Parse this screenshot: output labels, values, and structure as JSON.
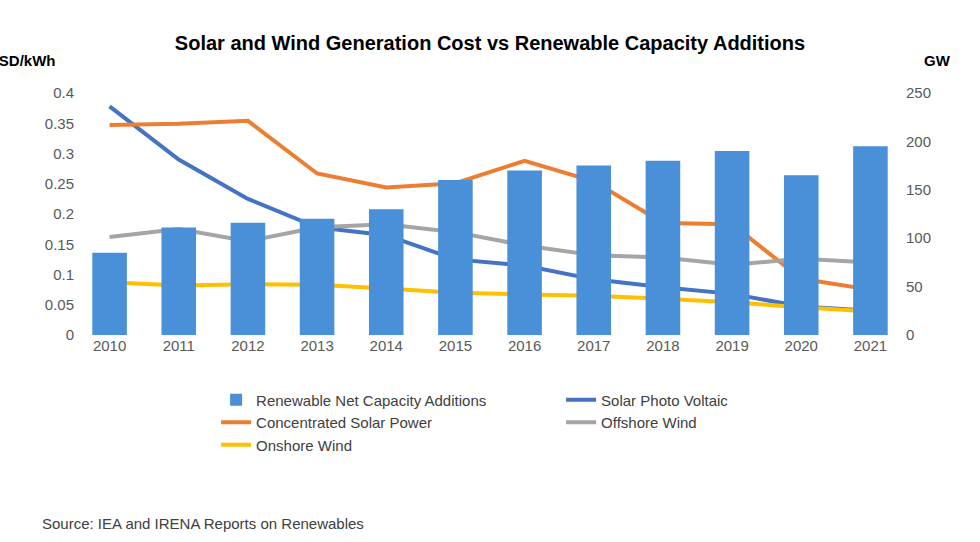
{
  "chart_data": {
    "type": "bar",
    "title": "Solar and Wind Generation Cost vs Renewable Capacity Additions",
    "ylabel": "USD/kWh",
    "y2label": "GW",
    "source": "Source: IEA and IRENA Reports on Renewables",
    "categories": [
      "2010",
      "2011",
      "2012",
      "2013",
      "2014",
      "2015",
      "2016",
      "2017",
      "2018",
      "2019",
      "2020",
      "2021"
    ],
    "series": [
      {
        "name": "Renewable Net Capacity Additions",
        "type": "bar",
        "axis": "y2",
        "color": "#4a90d9",
        "values": [
          85,
          111,
          116,
          120,
          130,
          160,
          170,
          175,
          180,
          190,
          165,
          195
        ]
      },
      {
        "name": "Solar Photo Voltaic",
        "type": "line",
        "color": "#4472c4",
        "values": [
          0.378,
          0.29,
          0.225,
          0.178,
          0.165,
          0.125,
          0.115,
          0.092,
          0.079,
          0.068,
          0.047,
          0.04
        ]
      },
      {
        "name": "Concentrated Solar Power",
        "type": "line",
        "color": "#ed7d31",
        "values": [
          0.347,
          0.349,
          0.354,
          0.267,
          0.244,
          0.251,
          0.288,
          0.254,
          0.185,
          0.183,
          0.093,
          0.075
        ]
      },
      {
        "name": "Offshore Wind",
        "type": "line",
        "color": "#a5a5a5",
        "values": [
          0.162,
          0.175,
          0.155,
          0.178,
          0.183,
          0.17,
          0.148,
          0.132,
          0.128,
          0.116,
          0.126,
          0.12
        ]
      },
      {
        "name": "Onshore Wind",
        "type": "line",
        "color": "#ffc000",
        "values": [
          0.087,
          0.082,
          0.084,
          0.083,
          0.077,
          0.07,
          0.067,
          0.065,
          0.06,
          0.054,
          0.046,
          0.039
        ]
      }
    ],
    "ylim": [
      0,
      0.4
    ],
    "yticks": [
      0,
      0.05,
      0.1,
      0.15,
      0.2,
      0.25,
      0.3,
      0.35,
      0.4
    ],
    "y2lim": [
      0,
      250
    ],
    "y2ticks": [
      0,
      50,
      100,
      150,
      200,
      250
    ],
    "grid": false,
    "legend": "bottom"
  }
}
